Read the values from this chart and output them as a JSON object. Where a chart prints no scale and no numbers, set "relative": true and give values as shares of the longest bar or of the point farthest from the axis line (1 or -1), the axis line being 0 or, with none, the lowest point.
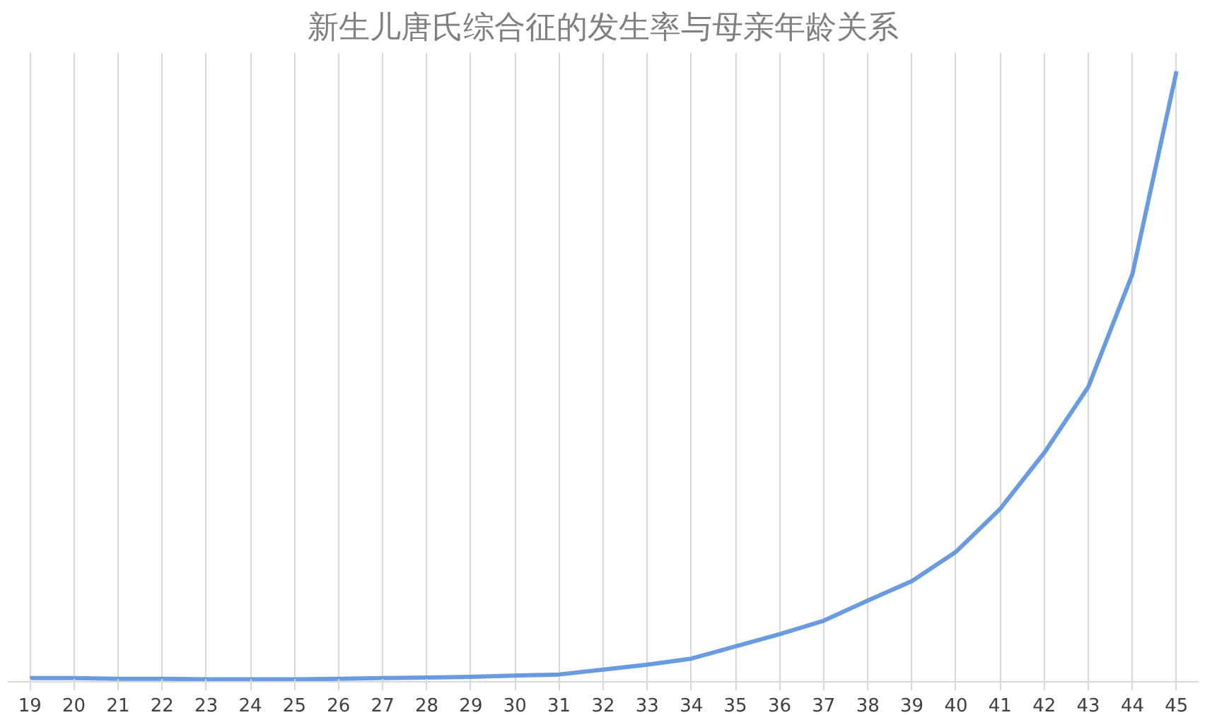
{
  "chart_data": {
    "type": "line",
    "title": "新生儿唐氏综合征的发生率与母亲年龄关系",
    "relative": true,
    "categories": [
      "19",
      "20",
      "21",
      "22",
      "23",
      "24",
      "25",
      "26",
      "27",
      "28",
      "29",
      "30",
      "31",
      "32",
      "33",
      "34",
      "35",
      "36",
      "37",
      "38",
      "39",
      "40",
      "41",
      "42",
      "43",
      "44",
      "45"
    ],
    "series": [
      {
        "color": "#6a9be0",
        "values": [
          0.006,
          0.006,
          0.005,
          0.005,
          0.004,
          0.004,
          0.004,
          0.005,
          0.006,
          0.007,
          0.008,
          0.01,
          0.012,
          0.02,
          0.028,
          0.038,
          0.058,
          0.078,
          0.1,
          0.133,
          0.165,
          0.213,
          0.283,
          0.375,
          0.483,
          0.668,
          1
        ]
      }
    ],
    "grid": "x",
    "marker": "none",
    "line_style": "solid"
  }
}
